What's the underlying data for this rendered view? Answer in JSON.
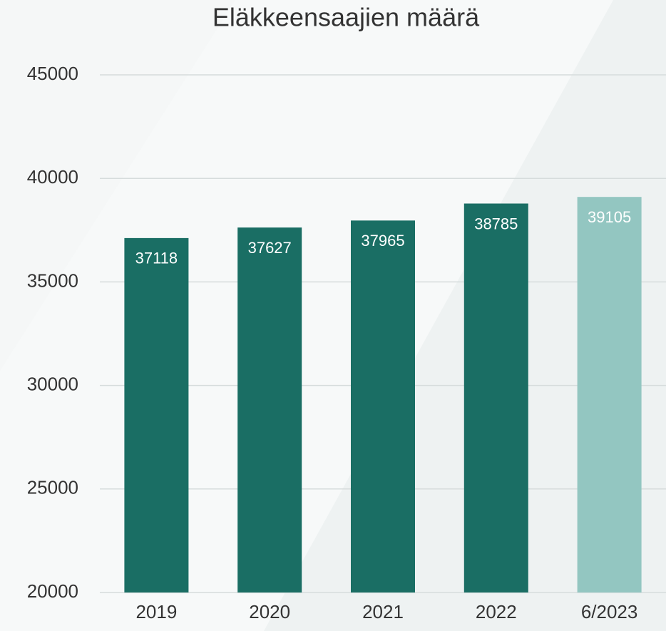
{
  "chart_data": {
    "type": "bar",
    "title": "Eläkkeensaajien määrä",
    "categories": [
      "2019",
      "2020",
      "2021",
      "2022",
      "6/2023"
    ],
    "values": [
      37118,
      37627,
      37965,
      38785,
      39105
    ],
    "colors": [
      "#1a6e64",
      "#1a6e64",
      "#1a6e64",
      "#1a6e64",
      "#93c6c1"
    ],
    "ylim": [
      20000,
      45000
    ],
    "yticks": [
      20000,
      25000,
      30000,
      35000,
      40000,
      45000
    ],
    "grid": true
  }
}
